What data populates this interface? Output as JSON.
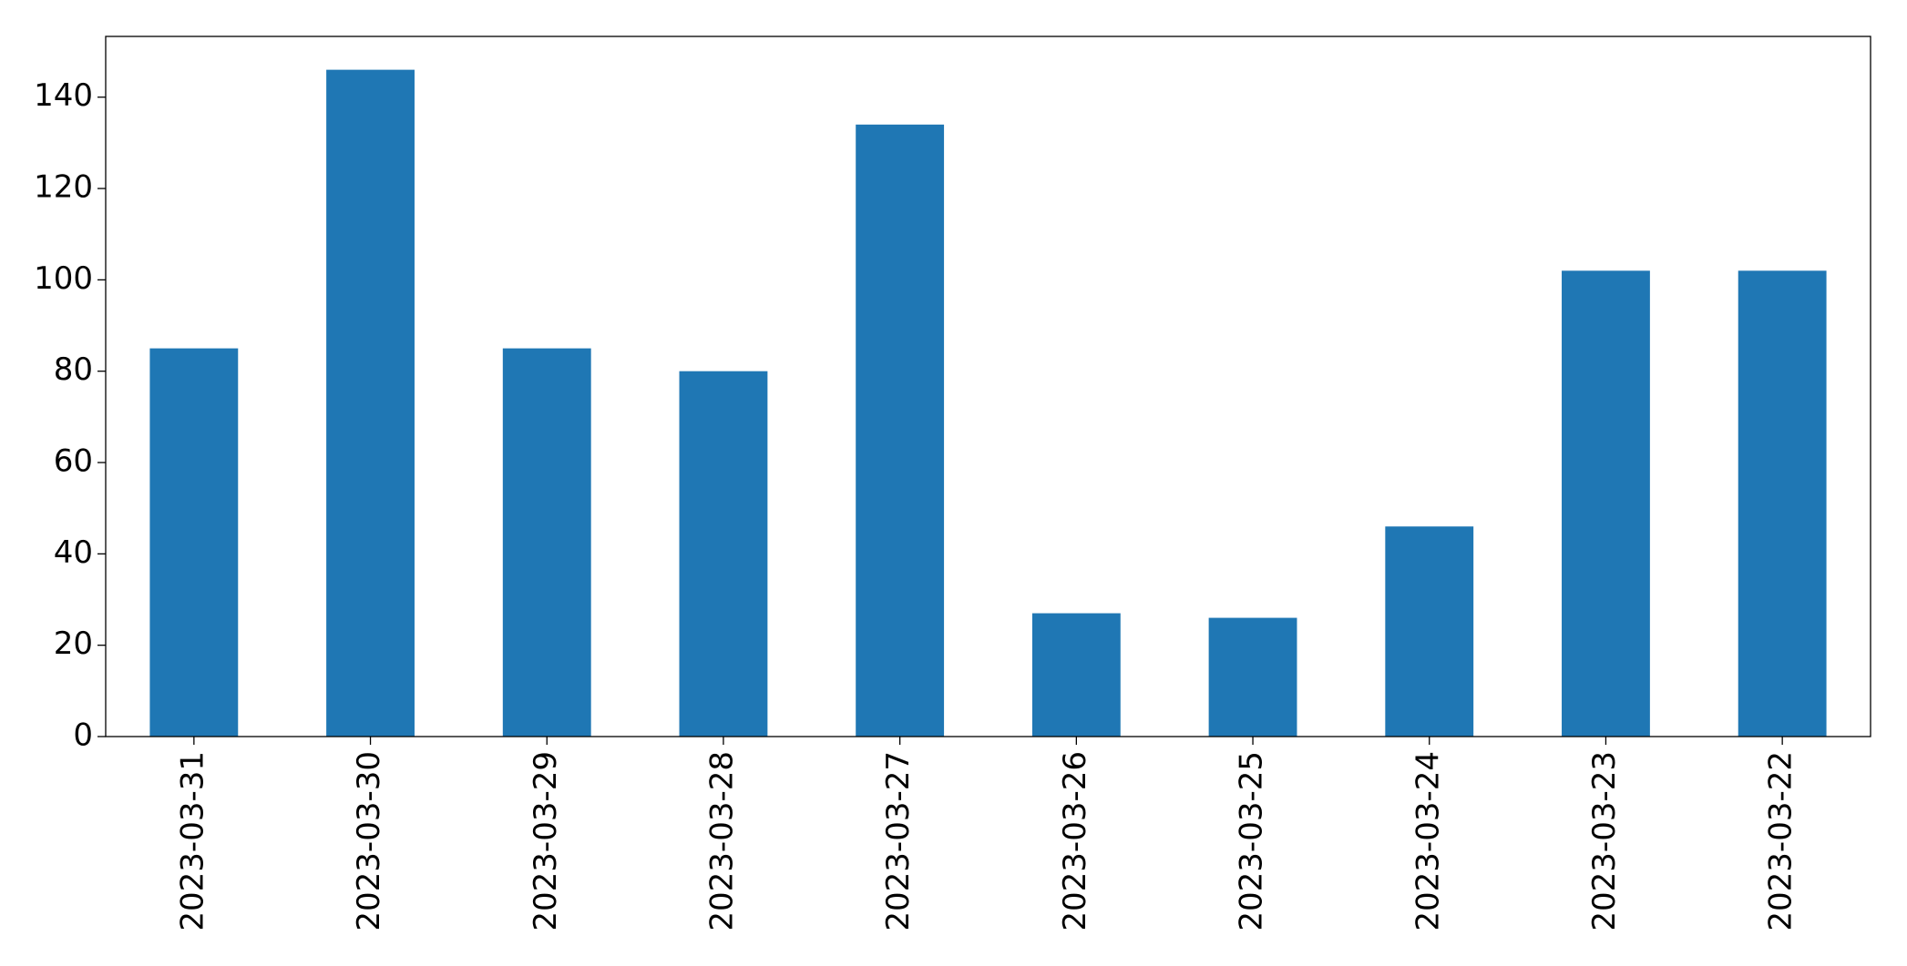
{
  "chart_data": {
    "type": "bar",
    "categories": [
      "2023-03-31",
      "2023-03-30",
      "2023-03-29",
      "2023-03-28",
      "2023-03-27",
      "2023-03-26",
      "2023-03-25",
      "2023-03-24",
      "2023-03-23",
      "2023-03-22"
    ],
    "values": [
      85,
      146,
      85,
      80,
      134,
      27,
      26,
      46,
      102,
      102
    ],
    "color": "#1f77b4",
    "ylim": [
      0,
      153.3
    ],
    "yticks": [
      0,
      20,
      40,
      60,
      80,
      100,
      120,
      140
    ],
    "grid": false
  }
}
